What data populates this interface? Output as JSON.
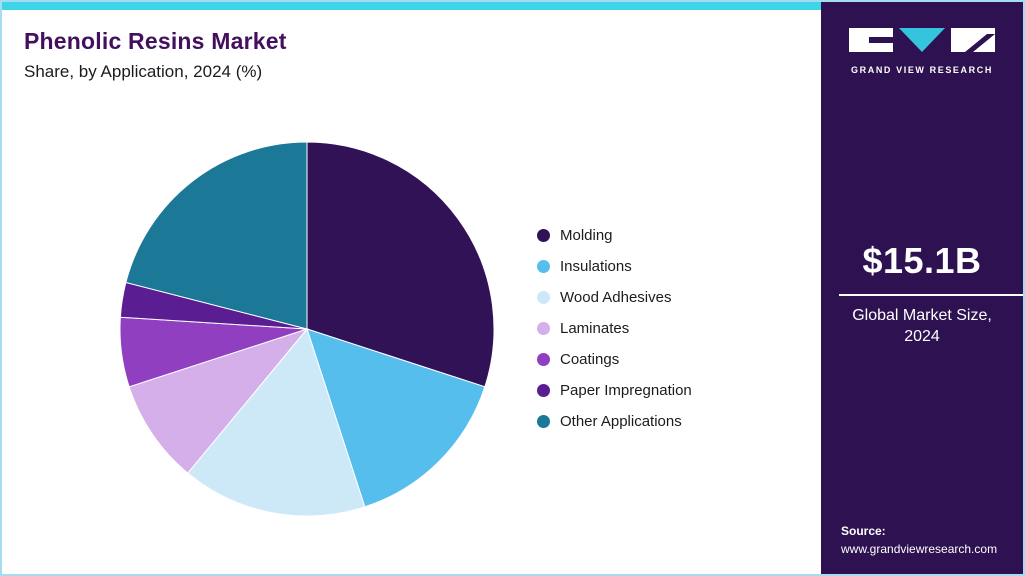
{
  "header": {
    "title": "Phenolic Resins Market",
    "subtitle": "Share, by Application, 2024 (%)"
  },
  "chart_data": {
    "type": "pie",
    "title": "Phenolic Resins Market Share, by Application, 2024 (%)",
    "unit": "%",
    "direction": "clockwise",
    "start_angle_deg": 0,
    "legend_position": "right",
    "segments": [
      {
        "label": "Molding",
        "value": 30,
        "color": "#321257"
      },
      {
        "label": "Insulations",
        "value": 15,
        "color": "#56beec"
      },
      {
        "label": "Wood Adhesives",
        "value": 16,
        "color": "#cde9f8"
      },
      {
        "label": "Laminates",
        "value": 9,
        "color": "#d5afe9"
      },
      {
        "label": "Coatings",
        "value": 6,
        "color": "#8f3fc0"
      },
      {
        "label": "Paper Impregnation",
        "value": 3,
        "color": "#5a1d92"
      },
      {
        "label": "Other Applications",
        "value": 21,
        "color": "#1b7897"
      }
    ]
  },
  "sidebar": {
    "logo_text": "GRAND VIEW RESEARCH",
    "market_size_value": "$15.1B",
    "market_size_label": "Global Market Size, 2024",
    "source_label": "Source:",
    "source_url": "www.grandviewresearch.com",
    "background_color": "#2e1150"
  },
  "theme": {
    "top_bar_color": "#3ed5e8",
    "border_color": "#a5dcef",
    "title_color": "#43105e"
  }
}
